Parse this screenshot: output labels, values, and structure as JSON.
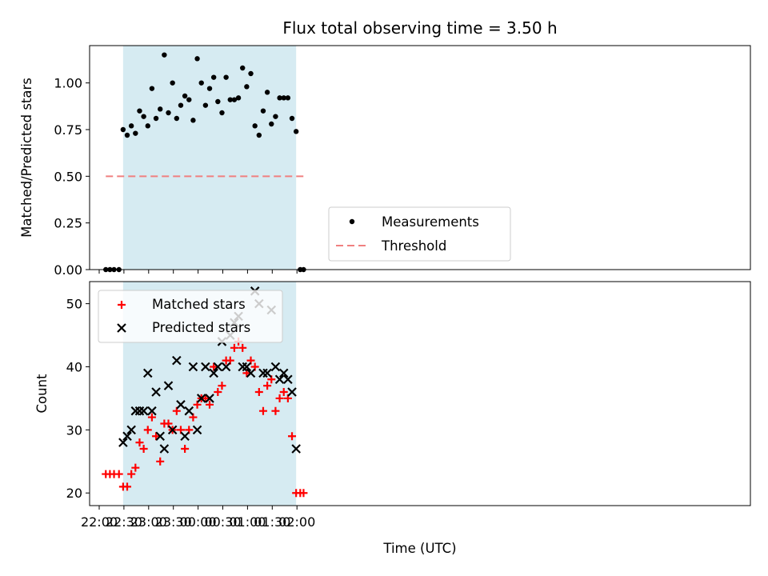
{
  "chart_data": [
    {
      "type": "scatter",
      "title": "Flux total observing time = 3.50 h",
      "ylabel": "Matched/Predicted stars",
      "ylim": [
        0,
        1.2
      ],
      "yticks": [
        0.0,
        0.25,
        0.5,
        0.75,
        1.0
      ],
      "ytick_labels": [
        "0.00",
        "0.25",
        "0.50",
        "0.75",
        "1.00"
      ],
      "shaded_interval": [
        "22:29",
        "01:59"
      ],
      "shade_color": "#add8e6",
      "threshold": {
        "name": "Threshold",
        "y": 0.5,
        "x_start": "22:08",
        "x_end": "02:08",
        "color": "#f08080"
      },
      "legend": {
        "placement": "lower center",
        "entries": [
          "Measurements",
          "Threshold"
        ]
      },
      "series": [
        {
          "name": "Measurements",
          "color": "#000000",
          "marker": "dot",
          "x": [
            "22:08",
            "22:13",
            "22:18",
            "22:24",
            "22:29",
            "22:34",
            "22:39",
            "22:44",
            "22:49",
            "22:54",
            "22:59",
            "23:04",
            "23:09",
            "23:14",
            "23:19",
            "23:24",
            "23:29",
            "23:34",
            "23:39",
            "23:44",
            "23:49",
            "23:54",
            "23:59",
            "00:04",
            "00:09",
            "00:14",
            "00:19",
            "00:24",
            "00:29",
            "00:34",
            "00:39",
            "00:44",
            "00:49",
            "00:54",
            "00:59",
            "01:04",
            "01:09",
            "01:14",
            "01:19",
            "01:24",
            "01:29",
            "01:34",
            "01:39",
            "01:44",
            "01:49",
            "01:54",
            "01:59",
            "02:04",
            "02:08"
          ],
          "y": [
            0.0,
            0.0,
            0.0,
            0.0,
            0.75,
            0.72,
            0.77,
            0.73,
            0.85,
            0.82,
            0.77,
            0.97,
            0.81,
            0.86,
            1.15,
            0.84,
            1.0,
            0.81,
            0.88,
            0.93,
            0.91,
            0.8,
            1.13,
            1.0,
            0.88,
            0.97,
            1.03,
            0.9,
            0.84,
            1.03,
            0.91,
            0.91,
            0.92,
            1.08,
            0.98,
            1.05,
            0.77,
            0.72,
            0.85,
            0.95,
            0.78,
            0.82,
            0.92,
            0.92,
            0.92,
            0.81,
            0.74,
            0.0,
            0.0
          ]
        }
      ]
    },
    {
      "type": "scatter",
      "xlabel": "Time (UTC)",
      "ylabel": "Count",
      "ylim": [
        18,
        53.5
      ],
      "yticks": [
        20,
        30,
        40,
        50
      ],
      "xticks": [
        "22:00",
        "22:30",
        "23:00",
        "23:30",
        "00:00",
        "00:30",
        "01:00",
        "01:30",
        "02:00"
      ],
      "shaded_interval": [
        "22:29",
        "01:59"
      ],
      "shade_color": "#add8e6",
      "legend": {
        "placement": "top-left",
        "entries": [
          "Matched stars",
          "Predicted stars"
        ]
      },
      "series": [
        {
          "name": "Matched stars",
          "color": "#ff0000",
          "marker": "plus",
          "x": [
            "22:08",
            "22:13",
            "22:18",
            "22:24",
            "22:29",
            "22:34",
            "22:39",
            "22:44",
            "22:49",
            "22:54",
            "22:59",
            "23:04",
            "23:09",
            "23:14",
            "23:19",
            "23:24",
            "23:29",
            "23:34",
            "23:39",
            "23:44",
            "23:49",
            "23:54",
            "23:59",
            "00:04",
            "00:09",
            "00:14",
            "00:19",
            "00:24",
            "00:29",
            "00:34",
            "00:39",
            "00:44",
            "00:49",
            "00:54",
            "00:59",
            "01:04",
            "01:09",
            "01:14",
            "01:19",
            "01:24",
            "01:29",
            "01:34",
            "01:39",
            "01:44",
            "01:49",
            "01:54",
            "01:59",
            "02:04",
            "02:08"
          ],
          "y": [
            23,
            23,
            23,
            23,
            21,
            21,
            23,
            24,
            28,
            27,
            30,
            32,
            29,
            25,
            31,
            31,
            30,
            33,
            30,
            27,
            30,
            32,
            34,
            35,
            35,
            34,
            40,
            36,
            37,
            41,
            41,
            43,
            44,
            43,
            39,
            41,
            40,
            36,
            33,
            37,
            38,
            33,
            35,
            36,
            35,
            29,
            20,
            20,
            20
          ]
        },
        {
          "name": "Predicted stars",
          "color": "#000000",
          "marker": "x",
          "x": [
            "22:29",
            "22:34",
            "22:39",
            "22:44",
            "22:49",
            "22:54",
            "22:59",
            "23:04",
            "23:09",
            "23:14",
            "23:19",
            "23:24",
            "23:29",
            "23:34",
            "23:39",
            "23:44",
            "23:49",
            "23:54",
            "23:59",
            "00:04",
            "00:09",
            "00:14",
            "00:19",
            "00:24",
            "00:29",
            "00:34",
            "00:39",
            "00:44",
            "00:49",
            "00:54",
            "00:59",
            "01:04",
            "01:09",
            "01:14",
            "01:19",
            "01:24",
            "01:29",
            "01:34",
            "01:39",
            "01:44",
            "01:49",
            "01:54",
            "01:59"
          ],
          "y": [
            28,
            29,
            30,
            33,
            33,
            33,
            39,
            33,
            36,
            29,
            27,
            37,
            30,
            41,
            34,
            29,
            33,
            40,
            30,
            35,
            40,
            35,
            39,
            40,
            44,
            40,
            45,
            47,
            48,
            40,
            40,
            39,
            52,
            50,
            39,
            39,
            49,
            40,
            38,
            39,
            38,
            36,
            27
          ]
        }
      ]
    }
  ]
}
